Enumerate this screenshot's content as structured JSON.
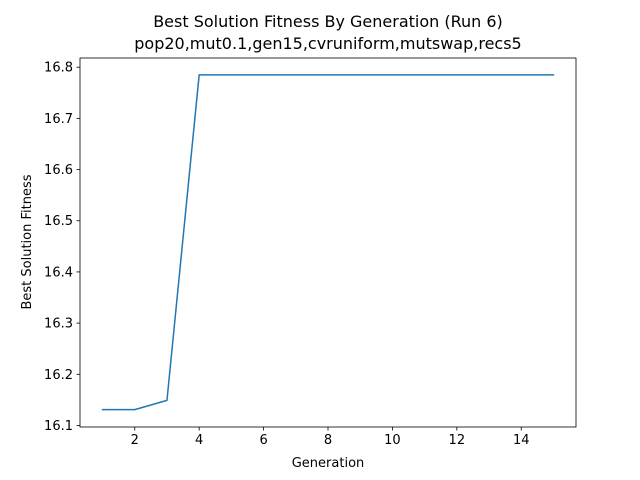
{
  "chart_data": {
    "type": "line",
    "title": "Best Solution Fitness By Generation (Run 6)",
    "subtitle": "pop20,mut0.1,gen15,cvruniform,mutswap,recs5",
    "xlabel": "Generation",
    "ylabel": "Best Solution Fitness",
    "xlim": [
      0.3,
      15.7
    ],
    "ylim": [
      16.097,
      16.818
    ],
    "xticks": [
      2,
      4,
      6,
      8,
      10,
      12,
      14
    ],
    "yticks": [
      16.1,
      16.2,
      16.3,
      16.4,
      16.5,
      16.6,
      16.7,
      16.8
    ],
    "ytick_labels": [
      "16.1",
      "16.2",
      "16.3",
      "16.4",
      "16.5",
      "16.6",
      "16.7",
      "16.8"
    ],
    "grid": false,
    "series": [
      {
        "color": "#1f77b4",
        "x": [
          1,
          2,
          3,
          4,
          5,
          6,
          7,
          8,
          9,
          10,
          11,
          12,
          13,
          14,
          15
        ],
        "y": [
          16.131,
          16.131,
          16.149,
          16.785,
          16.785,
          16.785,
          16.785,
          16.785,
          16.785,
          16.785,
          16.785,
          16.785,
          16.785,
          16.785,
          16.785
        ]
      }
    ]
  }
}
